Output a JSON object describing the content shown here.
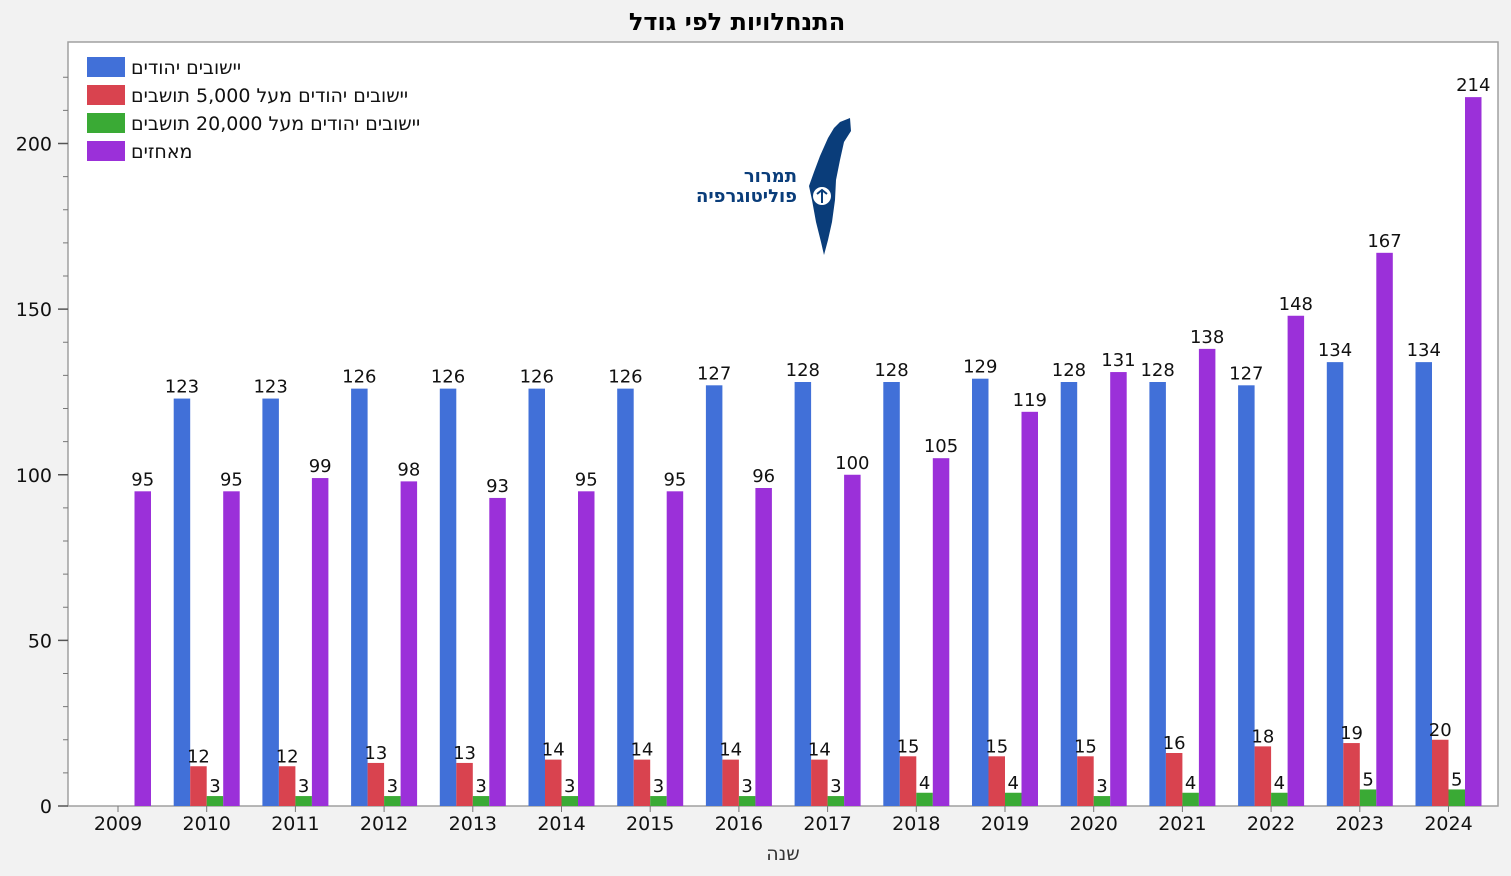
{
  "chart_data": {
    "type": "bar",
    "title": "התנחלויות לפי גודל",
    "xlabel": "שנה",
    "ylabel": "",
    "ylim": [
      0,
      228
    ],
    "yticks": [
      0,
      50,
      100,
      150,
      200
    ],
    "grid": false,
    "legend_position": "top-left",
    "categories": [
      "2009",
      "2010",
      "2011",
      "2012",
      "2013",
      "2014",
      "2015",
      "2016",
      "2017",
      "2018",
      "2019",
      "2020",
      "2021",
      "2022",
      "2023",
      "2024"
    ],
    "series": [
      {
        "name": "יישובים יהודים",
        "color": "#4170d8",
        "values": [
          null,
          123,
          123,
          126,
          126,
          126,
          126,
          127,
          128,
          128,
          129,
          128,
          128,
          127,
          134,
          134
        ]
      },
      {
        "name": "יישובים יהודים מעל 5,000 תושבים",
        "color": "#d9434f",
        "values": [
          null,
          12,
          12,
          13,
          13,
          14,
          14,
          14,
          14,
          15,
          15,
          15,
          16,
          18,
          19,
          20
        ]
      },
      {
        "name": "יישובים יהודים מעל 20,000 תושבים",
        "color": "#3aaa35",
        "values": [
          null,
          3,
          3,
          3,
          3,
          3,
          3,
          3,
          3,
          4,
          4,
          3,
          4,
          4,
          5,
          5
        ]
      },
      {
        "name": "מאחזים",
        "color": "#9b30d9",
        "values": [
          95,
          95,
          99,
          98,
          93,
          95,
          95,
          96,
          100,
          105,
          119,
          131,
          138,
          148,
          167,
          214
        ]
      }
    ]
  },
  "logo": {
    "line1": "תמרור",
    "line2": "פוליטוגרפיה",
    "color": "#0a3d7a"
  }
}
